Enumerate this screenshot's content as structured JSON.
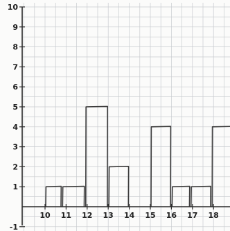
{
  "chart_data": {
    "type": "bar",
    "style": "hand-drawn histogram on graph paper",
    "grid": true,
    "x_ticks": [
      "10",
      "11",
      "12",
      "13",
      "14",
      "15",
      "16",
      "17",
      "18"
    ],
    "y_ticks": [
      "-1",
      "1",
      "2",
      "3",
      "4",
      "5",
      "6",
      "7",
      "8",
      "9",
      "10"
    ],
    "xlim": [
      9.2,
      18.9
    ],
    "ylim": [
      -1,
      10
    ],
    "bars": [
      {
        "x_start": 10,
        "x_end": 10.8,
        "value": 1
      },
      {
        "x_start": 10.8,
        "x_end": 11.9,
        "value": 1
      },
      {
        "x_start": 11.9,
        "x_end": 13,
        "value": 5
      },
      {
        "x_start": 13,
        "x_end": 14,
        "value": 2
      },
      {
        "x_start": 15,
        "x_end": 16,
        "value": 4
      },
      {
        "x_start": 16,
        "x_end": 16.9,
        "value": 1
      },
      {
        "x_start": 16.9,
        "x_end": 17.9,
        "value": 1
      },
      {
        "x_start": 17.9,
        "x_end": 18.9,
        "value": 4
      }
    ]
  }
}
